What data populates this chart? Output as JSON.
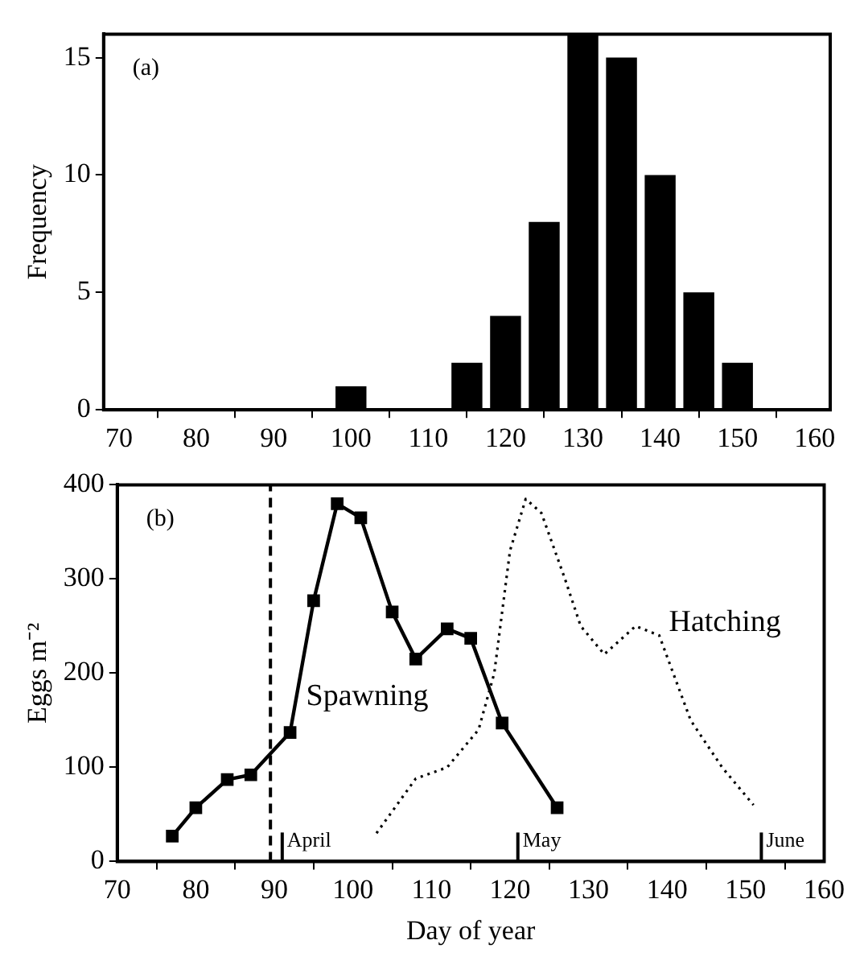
{
  "chart_data": [
    {
      "type": "histogram",
      "ylabel": "Frequency",
      "annotations": [
        "(a)"
      ],
      "bins": [
        97.5,
        102.5,
        107.5,
        112.5,
        117.5,
        122.5,
        127.5,
        132.5,
        137.5,
        142.5,
        147.5,
        152.5
      ],
      "values": [
        1,
        0,
        0,
        2,
        4,
        8,
        16,
        15,
        10,
        5,
        2
      ],
      "color": "#000000",
      "xlim": [
        68,
        162
      ],
      "xticks": [
        70,
        80,
        90,
        100,
        110,
        120,
        130,
        140,
        150,
        160
      ],
      "ylim": [
        0,
        16
      ],
      "yticks": [
        0,
        5,
        10,
        15
      ],
      "grid": false,
      "legend": false
    },
    {
      "type": "line",
      "xlabel": "Day of year",
      "ylabel": "Eggs m⁻²",
      "annotations": [
        "(b)"
      ],
      "series": [
        {
          "name": "Spawning",
          "color": "#000000",
          "marker": "square",
          "line_style": "solid",
          "x": [
            77,
            80,
            84,
            87,
            92,
            95,
            98,
            101,
            105,
            108,
            112,
            115,
            119,
            126
          ],
          "values": [
            27,
            57,
            87,
            92,
            137,
            277,
            380,
            365,
            265,
            215,
            247,
            237,
            147,
            57
          ]
        },
        {
          "name": "Hatching",
          "color": "#000000",
          "marker": "none",
          "line_style": "dotted",
          "x": [
            103,
            108,
            112,
            116,
            118,
            120,
            122,
            124,
            127,
            129,
            132,
            136,
            139,
            143,
            147,
            151
          ],
          "values": [
            30,
            88,
            100,
            140,
            200,
            330,
            385,
            370,
            300,
            250,
            220,
            250,
            240,
            150,
            100,
            60
          ]
        }
      ],
      "ref_lines": [
        {
          "axis": "x",
          "value": 89.5,
          "line_style": "dashed"
        },
        {
          "axis": "x",
          "value": 91,
          "label": "April"
        },
        {
          "axis": "x",
          "value": 121,
          "label": "May"
        },
        {
          "axis": "x",
          "value": 152,
          "label": "June"
        }
      ],
      "xlim": [
        70,
        160
      ],
      "xticks": [
        70,
        80,
        90,
        100,
        110,
        120,
        130,
        140,
        150,
        160
      ],
      "ylim": [
        0,
        400
      ],
      "yticks": [
        0,
        100,
        200,
        300,
        400
      ],
      "grid": false,
      "legend": false
    }
  ]
}
